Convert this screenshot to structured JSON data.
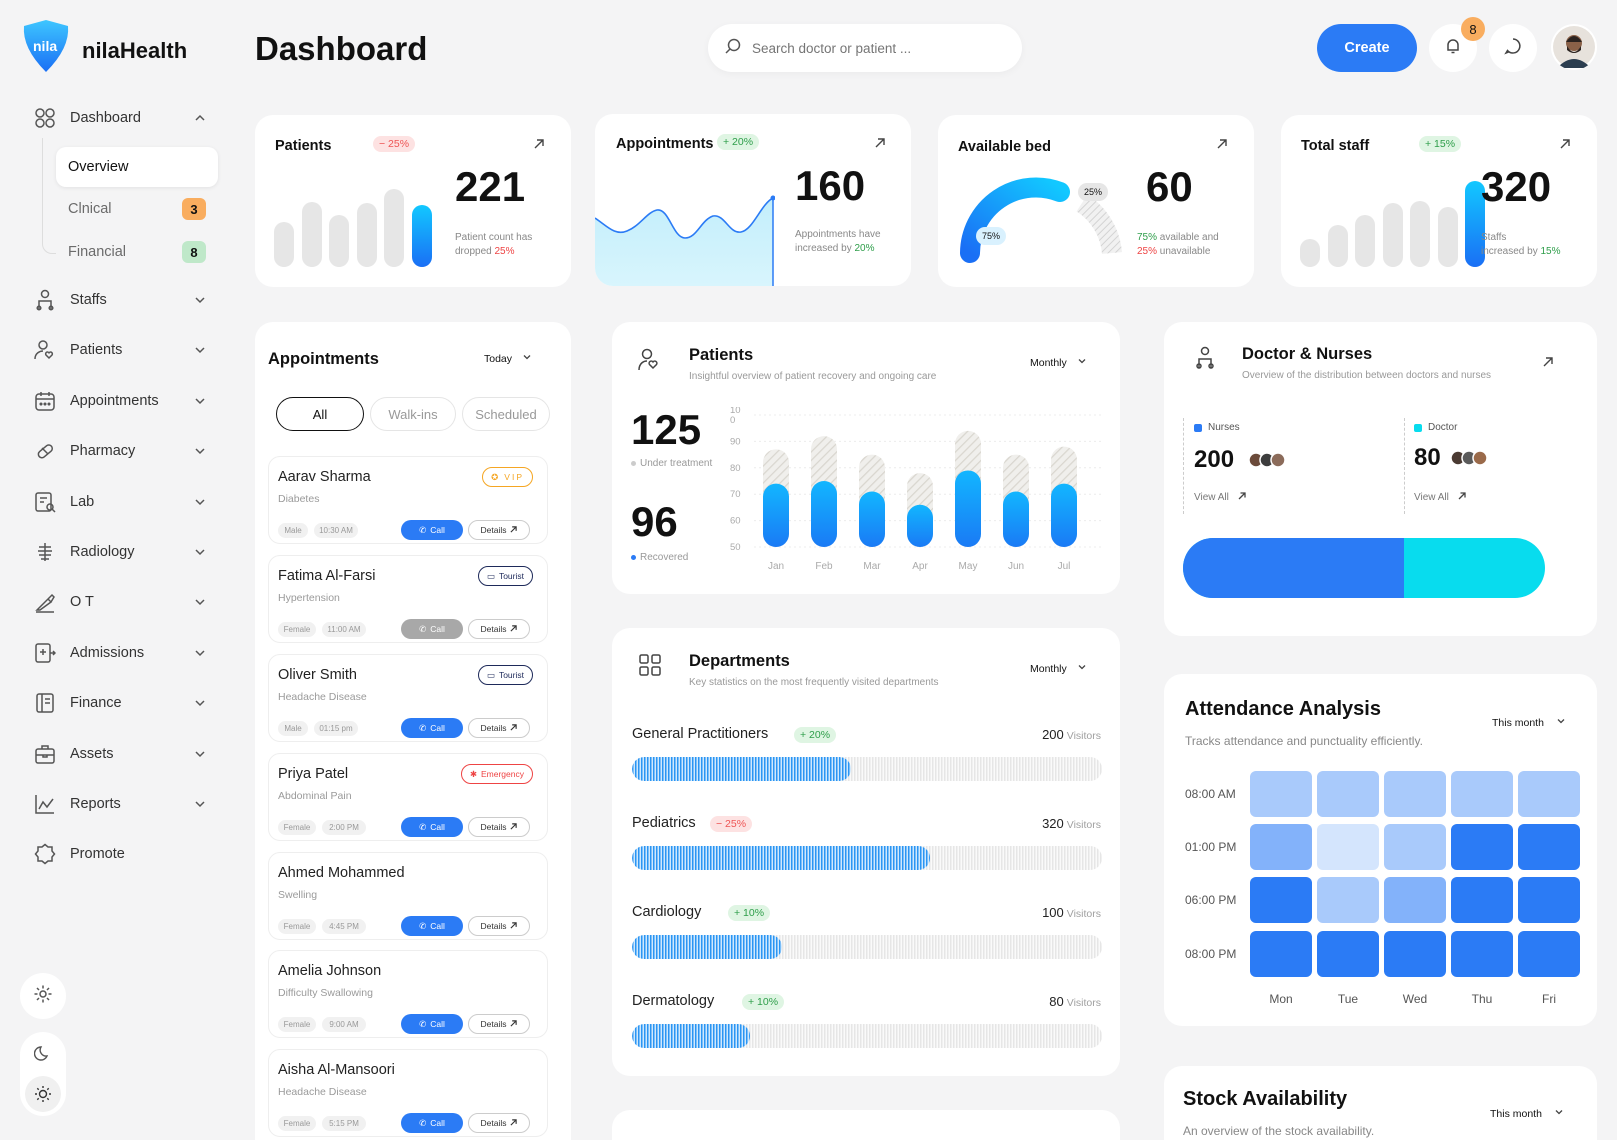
{
  "brand": {
    "logo_text": "nila",
    "name": "nilaHealth"
  },
  "header": {
    "title": "Dashboard",
    "search_placeholder": "Search doctor or patient ...",
    "create_label": "Create",
    "notification_count": "8"
  },
  "sidebar": {
    "dashboard": "Dashboard",
    "sub": [
      {
        "label": "Overview"
      },
      {
        "label": "Clnical",
        "count": "3"
      },
      {
        "label": "Financial",
        "count": "8"
      }
    ],
    "items": [
      "Staffs",
      "Patients",
      "Appointments",
      "Pharmacy",
      "Lab",
      "Radiology",
      "O T",
      "Admissions",
      "Finance",
      "Assets",
      "Reports",
      "Promote"
    ]
  },
  "stats": {
    "patients": {
      "title": "Patients",
      "delta": "− 25%",
      "value": "221",
      "note": "Patient count has",
      "note2": "dropped",
      "note_pct": "25%",
      "bars": [
        0.45,
        0.65,
        0.52,
        0.64,
        0.78,
        0.62
      ]
    },
    "appointments": {
      "title": "Appointments",
      "delta": "+ 20%",
      "value": "160",
      "note": "Appointments have",
      "note2": "increased by",
      "note_pct": "20%"
    },
    "beds": {
      "title": "Available bed",
      "value": "60",
      "available_pct": "75%",
      "unavailable_pct": "25%",
      "note_a": "available and",
      "note_b": "unavailable"
    },
    "staff": {
      "title": "Total staff",
      "delta": "+ 15%",
      "value": "320",
      "note": "Staffs",
      "note2": "increased by",
      "note_pct": "15%",
      "bars": [
        0.28,
        0.42,
        0.52,
        0.64,
        0.66,
        0.6,
        0.86
      ]
    }
  },
  "appointments": {
    "title": "Appointments",
    "filter": "Today",
    "tabs": [
      "All",
      "Walk-ins",
      "Scheduled"
    ],
    "call_label": "Call",
    "details_label": "Details",
    "list": [
      {
        "name": "Aarav Sharma",
        "diagnosis": "Diabetes",
        "gender": "Male",
        "time": "10:30 AM",
        "status": "VIP",
        "call_enabled": true
      },
      {
        "name": "Fatima Al-Farsi",
        "diagnosis": "Hypertension",
        "gender": "Female",
        "time": "11:00 AM",
        "status": "Tourist",
        "call_enabled": false
      },
      {
        "name": "Oliver Smith",
        "diagnosis": "Headache Disease",
        "gender": "Male",
        "time": "01:15 pm",
        "status": "Tourist",
        "call_enabled": true
      },
      {
        "name": "Priya Patel",
        "diagnosis": "Abdominal Pain",
        "gender": "Female",
        "time": "2:00 PM",
        "status": "Emergency",
        "call_enabled": true
      },
      {
        "name": "Ahmed Mohammed",
        "diagnosis": "Swelling",
        "gender": "Female",
        "time": "4:45 PM",
        "status": "",
        "call_enabled": true
      },
      {
        "name": "Amelia Johnson",
        "diagnosis": "Difficulty Swallowing",
        "gender": "Female",
        "time": "9:00 AM",
        "status": "",
        "call_enabled": true
      },
      {
        "name": "Aisha Al-Mansoori",
        "diagnosis": "Headache Disease",
        "gender": "Female",
        "time": "5:15 PM",
        "status": "",
        "call_enabled": true
      }
    ]
  },
  "patients_panel": {
    "title": "Patients",
    "subtitle": "Insightful overview of patient recovery and ongoing care",
    "filter": "Monthly",
    "under_treatment": "125",
    "under_treatment_label": "Under treatment",
    "recovered": "96",
    "recovered_label": "Recovered"
  },
  "chart_data": {
    "type": "bar",
    "categories": [
      "Jan",
      "Feb",
      "Mar",
      "Apr",
      "May",
      "Jun",
      "Jul"
    ],
    "yticks": [
      "10\n0",
      "90",
      "80",
      "70",
      "60",
      "50"
    ],
    "ylim": [
      50,
      100
    ],
    "series": [
      {
        "values": [
          74,
          75,
          71,
          66,
          79,
          71,
          74
        ]
      },
      {
        "values": [
          87,
          92,
          85,
          78,
          94,
          85,
          88
        ]
      }
    ]
  },
  "departments": {
    "title": "Departments",
    "subtitle": "Key statistics on the most frequently visited departments",
    "filter": "Monthly",
    "unit": "Visitors",
    "list": [
      {
        "name": "General Practitioners",
        "delta": "+ 20%",
        "value": "200",
        "fill": 0.465
      },
      {
        "name": "Pediatrics",
        "delta": "− 25%",
        "value": "320",
        "fill": 0.635
      },
      {
        "name": "Cardiology",
        "delta": "+ 10%",
        "value": "100",
        "fill": 0.32
      },
      {
        "name": "Dermatology",
        "delta": "+ 10%",
        "value": "80",
        "fill": 0.25
      }
    ]
  },
  "doctors_nurses": {
    "title": "Doctor & Nurses",
    "subtitle": "Overview of the distribution between doctors and nurses",
    "nurses_label": "Nurses",
    "nurses_value": "200",
    "doctor_label": "Doctor",
    "doctor_value": "80",
    "view_all": "View All",
    "nurse_share": 0.61
  },
  "attendance": {
    "title": "Attendance Analysis",
    "subtitle": "Tracks attendance and punctuality efficiently.",
    "filter": "This month",
    "rows": [
      "08:00 AM",
      "01:00 PM",
      "06:00 PM",
      "08:00 PM"
    ],
    "cols": [
      "Mon",
      "Tue",
      "Wed",
      "Thu",
      "Fri"
    ],
    "levels": [
      [
        2,
        2,
        2,
        2,
        2
      ],
      [
        3,
        1,
        2,
        4,
        4
      ],
      [
        4,
        2,
        3,
        4,
        4
      ],
      [
        4,
        4,
        4,
        4,
        4
      ]
    ]
  },
  "stock": {
    "title": "Stock Availability",
    "subtitle": "An overview of the stock availability.",
    "filter": "This month"
  },
  "colors": {
    "primary": "#2b7bf5",
    "accent_cyan": "#08dcee",
    "red": "#ee4444",
    "green": "#2e9e4a",
    "orange_badge": "#f9ad5f",
    "green_badge": "#bfe8c9"
  }
}
